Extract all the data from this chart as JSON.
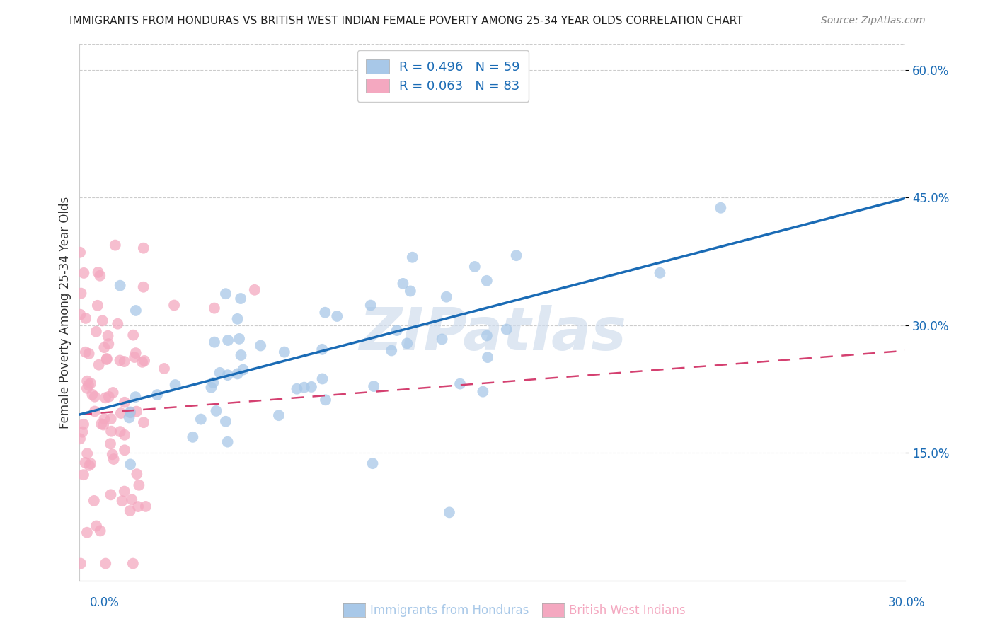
{
  "title": "IMMIGRANTS FROM HONDURAS VS BRITISH WEST INDIAN FEMALE POVERTY AMONG 25-34 YEAR OLDS CORRELATION CHART",
  "source": "Source: ZipAtlas.com",
  "ylabel": "Female Poverty Among 25-34 Year Olds",
  "xlim": [
    0.0,
    0.3
  ],
  "ylim": [
    0.0,
    0.63
  ],
  "ytick_positions": [
    0.15,
    0.3,
    0.45,
    0.6
  ],
  "ytick_labels": [
    "15.0%",
    "30.0%",
    "45.0%",
    "60.0%"
  ],
  "blue_color": "#a8c8e8",
  "pink_color": "#f4a8c0",
  "blue_line_color": "#1a6bb5",
  "pink_line_color": "#d44070",
  "watermark_text": "ZIPatlas",
  "legend_r_blue": "R = 0.496",
  "legend_n_blue": "N = 59",
  "legend_r_pink": "R = 0.063",
  "legend_n_pink": "N = 83",
  "legend_label_blue": "Immigrants from Honduras",
  "legend_label_pink": "British West Indians",
  "blue_line_x0": 0.0,
  "blue_line_y0": 0.195,
  "blue_line_x1": 0.3,
  "blue_line_y1": 0.449,
  "pink_line_x0": 0.0,
  "pink_line_y0": 0.195,
  "pink_line_x1": 0.3,
  "pink_line_y1": 0.27,
  "blue_N": 59,
  "pink_N": 83,
  "blue_R": 0.496,
  "pink_R": 0.063
}
